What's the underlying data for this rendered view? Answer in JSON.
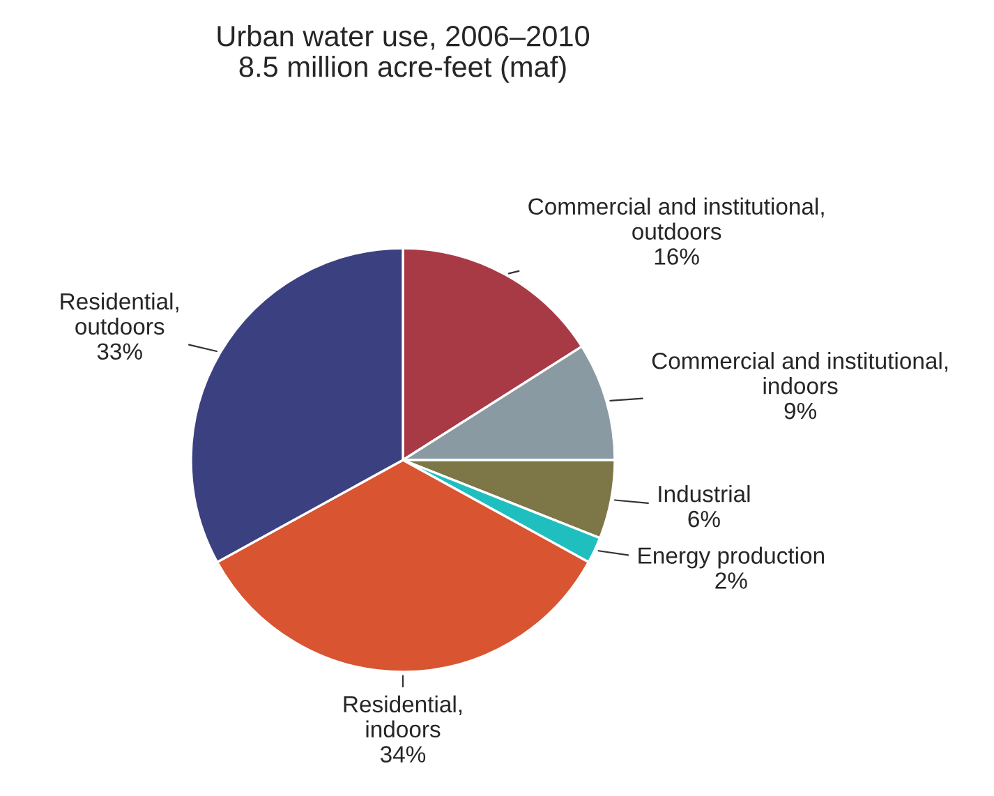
{
  "chart_data": {
    "type": "pie",
    "title": "Urban water use, 2006–2010",
    "subtitle": "8.5 million acre-feet (maf)",
    "categories": [
      "Commercial and institutional, outdoors",
      "Commercial and institutional, indoors",
      "Industrial",
      "Energy production",
      "Residential, indoors",
      "Residential, outdoors"
    ],
    "values": [
      16,
      9,
      6,
      2,
      34,
      33
    ],
    "value_labels": [
      "16%",
      "9%",
      "6%",
      "2%",
      "34%",
      "33%"
    ],
    "colors": [
      "#a83a45",
      "#8a9aa3",
      "#7d7646",
      "#1fbfbf",
      "#d95430",
      "#3b4080"
    ]
  }
}
